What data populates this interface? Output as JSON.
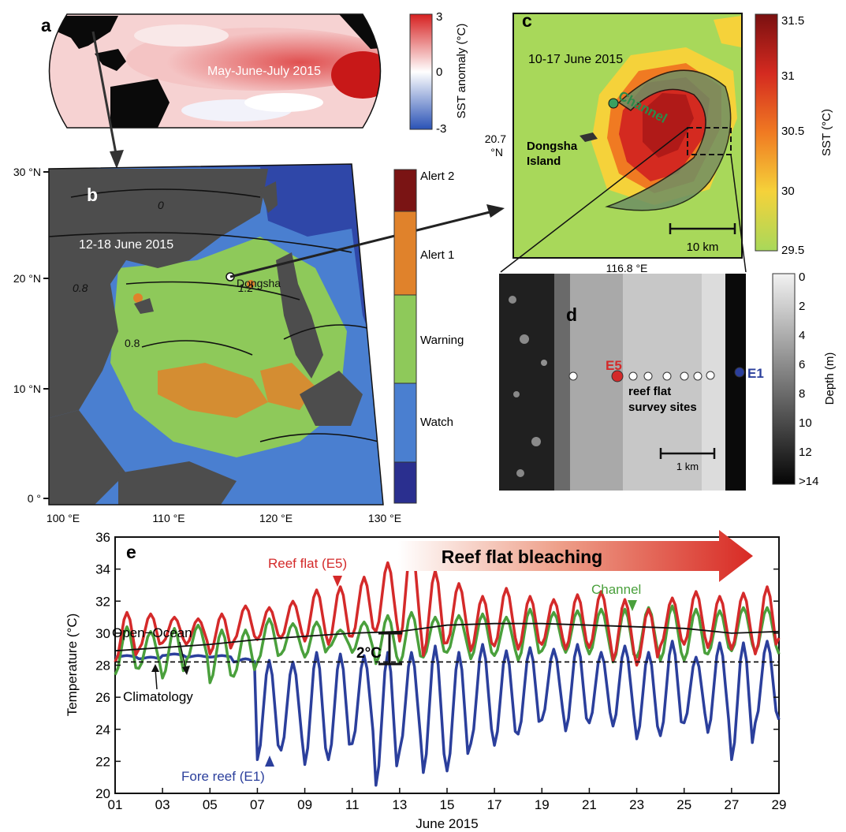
{
  "panels": {
    "a": {
      "letter": "a",
      "period": "May-June-July 2015",
      "colorbar": {
        "label": "SST anomaly (°C)",
        "ticks": [
          "3",
          "0",
          "-3"
        ]
      }
    },
    "b": {
      "letter": "b",
      "period": "12-18 June 2015",
      "station_label": "Dongsha",
      "lat_ticks": [
        "30 °N",
        "20 °N",
        "10 °N",
        "0 °"
      ],
      "lon_ticks": [
        "100 °E",
        "110 °E",
        "120 °E",
        "130 °E"
      ],
      "contour_labels": [
        "0",
        "0.8",
        "1.2",
        "0.8"
      ],
      "legend": [
        "Alert 2",
        "Alert 1",
        "Warning",
        "Watch"
      ],
      "legend_colors": [
        "#7a1414",
        "#e0822b",
        "#8ec95a",
        "#4a7fd0",
        "#2a2f8f"
      ]
    },
    "c": {
      "letter": "c",
      "period": "10-17 June 2015",
      "channel_label": "Channel",
      "island_label": [
        "Dongsha",
        "Island"
      ],
      "lat_tick": [
        "20.7",
        "°N"
      ],
      "lon_tick": "116.8 °E",
      "scale_label": "10 km",
      "colorbar": {
        "label": "SST (°C)",
        "ticks": [
          "31.5",
          "31",
          "30.5",
          "30",
          "29.5"
        ]
      }
    },
    "d": {
      "letter": "d",
      "site_e5": "E5",
      "site_e1": "E1",
      "survey_label": [
        "reef flat",
        "survey sites"
      ],
      "scale_label": "1 km",
      "colorbar": {
        "label": "Depth (m)",
        "ticks": [
          "0",
          "2",
          "4",
          "6",
          "8",
          "10",
          "12",
          ">14"
        ]
      }
    },
    "e": {
      "letter": "e",
      "ylabel": "Temperature (°C)",
      "xlabel": "June 2015",
      "banner": "Reef flat bleaching",
      "annotations": {
        "reef_flat": "Reef flat (E5)",
        "open_ocean": "Open−Ocean",
        "climatology": "Climatology",
        "channel": "Channel",
        "fore_reef": "Fore reef (E1)",
        "offset": "2°C"
      }
    }
  },
  "chart_data": {
    "type": "line",
    "title": "",
    "xlabel": "June 2015",
    "ylabel": "Temperature (°C)",
    "xlim": [
      1,
      29
    ],
    "ylim": [
      20,
      36
    ],
    "x_ticks": [
      "01",
      "03",
      "05",
      "07",
      "09",
      "11",
      "13",
      "15",
      "17",
      "19",
      "21",
      "23",
      "25",
      "27",
      "29"
    ],
    "y_ticks": [
      "20",
      "22",
      "24",
      "26",
      "28",
      "30",
      "32",
      "34",
      "36"
    ],
    "grid": false,
    "series": [
      {
        "name": "Reef flat (E5)",
        "color": "#d42a2a",
        "day_max": [
          31.3,
          31.2,
          31.0,
          30.9,
          31.2,
          31.7,
          31.6,
          32.0,
          32.7,
          32.9,
          33.5,
          34.4,
          35.6,
          33.9,
          33.1,
          32.3,
          32.8,
          32.3,
          32.1,
          32.4,
          32.6,
          32.1,
          31.5,
          32.2,
          32.6,
          32.3,
          32.5,
          32.9,
          33.1
        ],
        "day_min": [
          28.2,
          29.0,
          29.4,
          29.3,
          28.7,
          29.5,
          29.6,
          29.7,
          29.5,
          29.3,
          29.8,
          30.1,
          29.5,
          28.6,
          29.4,
          28.9,
          29.2,
          29.0,
          29.3,
          29.0,
          29.1,
          28.3,
          28.0,
          29.2,
          29.3,
          29.1,
          29.0,
          28.7,
          29.7
        ]
      },
      {
        "name": "Channel",
        "color": "#4aa03c",
        "day_max": [
          30.4,
          30.1,
          30.3,
          30.5,
          30.2,
          30.2,
          30.9,
          30.6,
          30.7,
          30.2,
          30.7,
          31.1,
          31.3,
          31.0,
          31.1,
          31.2,
          31.0,
          31.5,
          31.3,
          31.4,
          31.5,
          31.5,
          31.6,
          31.7,
          31.5,
          31.4,
          31.6,
          31.6,
          31.7
        ],
        "day_min": [
          27.4,
          27.8,
          27.2,
          28.3,
          26.9,
          27.3,
          28.2,
          28.7,
          28.5,
          29.1,
          28.8,
          28.1,
          28.1,
          28.5,
          28.8,
          28.4,
          28.6,
          28.3,
          28.9,
          28.8,
          28.7,
          28.2,
          28.5,
          28.3,
          28.3,
          28.7,
          28.9,
          28.8,
          28.7
        ]
      },
      {
        "name": "Fore reef (E1)",
        "color": "#2b3f9c",
        "day_max": [
          28.6,
          28.5,
          28.7,
          28.6,
          28.6,
          28.4,
          28.3,
          28.2,
          28.8,
          28.7,
          28.6,
          28.8,
          28.8,
          29.2,
          28.8,
          29.3,
          28.9,
          29.1,
          29.0,
          29.3,
          28.8,
          29.2,
          28.8,
          29.5,
          28.5,
          29.4,
          29.4,
          29.5,
          29.3
        ],
        "day_min": [
          28.5,
          28.4,
          28.6,
          28.5,
          28.5,
          28.2,
          22.1,
          22.7,
          21.8,
          22.1,
          23.1,
          20.5,
          22.7,
          21.3,
          21.4,
          23.1,
          23.0,
          23.7,
          24.6,
          23.9,
          24.4,
          24.2,
          23.4,
          23.6,
          24.4,
          23.8,
          22.1,
          24.4,
          24.6
        ]
      },
      {
        "name": "Open−Ocean",
        "color": "#111111",
        "x": [
          1,
          3,
          5,
          7,
          9,
          11,
          13,
          15,
          17,
          19,
          21,
          23,
          25,
          27,
          29
        ],
        "values": [
          28.9,
          29.1,
          29.3,
          29.6,
          29.8,
          30.0,
          30.1,
          30.5,
          30.6,
          30.6,
          30.5,
          30.4,
          30.3,
          30.0,
          30.1
        ]
      },
      {
        "name": "Climatology",
        "color": "#111111",
        "dashed": true,
        "x": [
          1,
          29
        ],
        "values": [
          28.2,
          28.2
        ]
      }
    ]
  }
}
